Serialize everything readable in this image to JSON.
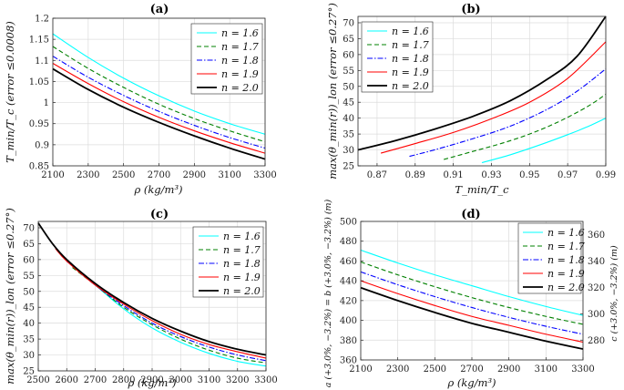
{
  "chart_data": [
    {
      "panel": "(a)",
      "type": "line",
      "xlabel": "ρ (kg/m³)",
      "ylabel": "T_min/T_c (error ≤0.0008)",
      "xlim": [
        2100,
        3300
      ],
      "ylim": [
        0.85,
        1.2
      ],
      "xticks": [
        2100,
        2300,
        2500,
        2700,
        2900,
        3100,
        3300
      ],
      "yticks": [
        0.85,
        0.9,
        0.95,
        1,
        1.05,
        1.1,
        1.15,
        1.2
      ],
      "ytick_labels": [
        "0.85",
        "0.9",
        "0.95",
        "1",
        "1.05",
        "1.1",
        "1.15",
        "1.2"
      ],
      "legend_position": "top-right",
      "series": [
        {
          "name": "n = 1.6",
          "x": [
            2100,
            2300,
            2500,
            2700,
            2900,
            3100,
            3300
          ],
          "y": [
            1.163,
            1.107,
            1.058,
            1.016,
            0.98,
            0.95,
            0.925
          ]
        },
        {
          "name": "n = 1.7",
          "x": [
            2100,
            2300,
            2500,
            2700,
            2900,
            3100,
            3300
          ],
          "y": [
            1.133,
            1.081,
            1.036,
            0.996,
            0.962,
            0.933,
            0.907
          ]
        },
        {
          "name": "n = 1.8",
          "x": [
            2100,
            2300,
            2500,
            2700,
            2900,
            3100,
            3300
          ],
          "y": [
            1.11,
            1.06,
            1.017,
            0.979,
            0.946,
            0.917,
            0.892
          ]
        },
        {
          "name": "n = 1.9",
          "x": [
            2100,
            2300,
            2500,
            2700,
            2900,
            3100,
            3300
          ],
          "y": [
            1.093,
            1.045,
            1.002,
            0.965,
            0.933,
            0.905,
            0.88
          ]
        },
        {
          "name": "n = 2.0",
          "x": [
            2100,
            2300,
            2500,
            2700,
            2900,
            3100,
            3300
          ],
          "y": [
            1.08,
            1.031,
            0.989,
            0.953,
            0.921,
            0.892,
            0.866
          ]
        }
      ]
    },
    {
      "panel": "(b)",
      "type": "line",
      "xlabel": "T_min/T_c",
      "ylabel": "max(θ_min(r))_lon (error ≤0.27°)",
      "xlim": [
        0.86,
        0.99
      ],
      "ylim": [
        25,
        72
      ],
      "xticks": [
        0.87,
        0.89,
        0.91,
        0.93,
        0.95,
        0.97,
        0.99
      ],
      "yticks": [
        25,
        30,
        35,
        40,
        45,
        50,
        55,
        60,
        65,
        70
      ],
      "legend_position": "top-left",
      "series": [
        {
          "name": "n = 1.6",
          "x": [
            0.925,
            0.94,
            0.955,
            0.97,
            0.98,
            0.99
          ],
          "y": [
            26.0,
            28.5,
            31.5,
            34.8,
            37.2,
            40.0
          ]
        },
        {
          "name": "n = 1.7",
          "x": [
            0.905,
            0.92,
            0.935,
            0.95,
            0.965,
            0.98,
            0.99
          ],
          "y": [
            27.0,
            29.5,
            32.0,
            35.0,
            38.8,
            43.5,
            47.5
          ]
        },
        {
          "name": "n = 1.8",
          "x": [
            0.887,
            0.9,
            0.92,
            0.94,
            0.96,
            0.975,
            0.99
          ],
          "y": [
            28.0,
            30.0,
            33.5,
            37.5,
            43.0,
            48.5,
            55.5
          ]
        },
        {
          "name": "n = 1.9",
          "x": [
            0.872,
            0.89,
            0.91,
            0.93,
            0.95,
            0.97,
            0.99
          ],
          "y": [
            29.0,
            32.0,
            35.5,
            39.8,
            45.0,
            52.5,
            64.0
          ]
        },
        {
          "name": "n = 2.0",
          "x": [
            0.86,
            0.88,
            0.9,
            0.92,
            0.94,
            0.96,
            0.975,
            0.99
          ],
          "y": [
            30.0,
            33.0,
            36.5,
            40.5,
            45.5,
            52.5,
            59.5,
            72.0
          ]
        }
      ]
    },
    {
      "panel": "(c)",
      "type": "line",
      "xlabel": "ρ (kg/m³)",
      "ylabel": "max(θ_min(r))_lon (error ≤0.27°)",
      "xlim": [
        2500,
        3300
      ],
      "ylim": [
        25,
        72
      ],
      "xticks": [
        2500,
        2600,
        2700,
        2800,
        2900,
        3000,
        3100,
        3200,
        3300
      ],
      "yticks": [
        25,
        30,
        35,
        40,
        45,
        50,
        55,
        60,
        65,
        70
      ],
      "legend_position": "top-right",
      "series": [
        {
          "name": "n = 1.6",
          "x": [
            2650,
            2700,
            2800,
            2900,
            3000,
            3100,
            3200,
            3300
          ],
          "y": [
            55.5,
            52.0,
            44.5,
            38.5,
            34.0,
            30.5,
            28.0,
            26.5
          ]
        },
        {
          "name": "n = 1.7",
          "x": [
            2620,
            2700,
            2800,
            2900,
            3000,
            3100,
            3200,
            3300
          ],
          "y": [
            57.5,
            52.0,
            45.0,
            39.5,
            35.0,
            31.5,
            29.0,
            27.5
          ]
        },
        {
          "name": "n = 1.8",
          "x": [
            2600,
            2700,
            2800,
            2900,
            3000,
            3100,
            3200,
            3300
          ],
          "y": [
            59.5,
            52.0,
            45.5,
            40.0,
            35.8,
            32.5,
            30.0,
            28.2
          ]
        },
        {
          "name": "n = 1.9",
          "x": [
            2560,
            2600,
            2700,
            2800,
            2900,
            3000,
            3100,
            3200,
            3300
          ],
          "y": [
            63.5,
            59.5,
            52.0,
            46.0,
            40.8,
            36.5,
            33.3,
            31.0,
            29.0
          ]
        },
        {
          "name": "n = 2.0",
          "x": [
            2500,
            2550,
            2600,
            2700,
            2800,
            2900,
            3000,
            3100,
            3200,
            3300
          ],
          "y": [
            71.5,
            65.0,
            60.0,
            52.5,
            46.5,
            41.5,
            37.5,
            34.2,
            31.8,
            30.0
          ]
        }
      ]
    },
    {
      "panel": "(d)",
      "type": "line",
      "xlabel": "ρ (kg/m³)",
      "ylabel": "a (+3.0%, −3.2%) = b (+3.0%, −3.2%) (m)",
      "ylabel_right": "c (+3.0%, −3.2%) (m)",
      "xlim": [
        2100,
        3300
      ],
      "ylim": [
        360,
        500
      ],
      "ylim_right": [
        265,
        370
      ],
      "xticks": [
        2100,
        2300,
        2500,
        2700,
        2900,
        3100,
        3300
      ],
      "yticks": [
        360,
        380,
        400,
        420,
        440,
        460,
        480,
        500
      ],
      "yticks_right": [
        280,
        300,
        320,
        340,
        360
      ],
      "legend_position": "top-right",
      "series": [
        {
          "name": "n = 1.6",
          "x": [
            2100,
            2300,
            2500,
            2700,
            2900,
            3100,
            3300
          ],
          "y": [
            471,
            458,
            446,
            435,
            424,
            414,
            405
          ]
        },
        {
          "name": "n = 1.7",
          "x": [
            2100,
            2300,
            2500,
            2700,
            2900,
            3100,
            3300
          ],
          "y": [
            459,
            446,
            434,
            423,
            413,
            404,
            396
          ]
        },
        {
          "name": "n = 1.8",
          "x": [
            2100,
            2300,
            2500,
            2700,
            2900,
            3100,
            3300
          ],
          "y": [
            449,
            436,
            424,
            413,
            403,
            394,
            386
          ]
        },
        {
          "name": "n = 1.9",
          "x": [
            2100,
            2300,
            2500,
            2700,
            2900,
            3100,
            3300
          ],
          "y": [
            440,
            427,
            415,
            404,
            395,
            386,
            378
          ]
        },
        {
          "name": "n = 2.0",
          "x": [
            2100,
            2300,
            2500,
            2700,
            2900,
            3100,
            3300
          ],
          "y": [
            433,
            420,
            408,
            397,
            388,
            379,
            371
          ]
        }
      ]
    }
  ],
  "series_style": [
    {
      "color": "#00ffff",
      "dash": ""
    },
    {
      "color": "#008000",
      "dash": "5,3"
    },
    {
      "color": "#0000ff",
      "dash": "6,2,1.5,2"
    },
    {
      "color": "#ff0000",
      "dash": ""
    },
    {
      "color": "#000000",
      "dash": ""
    }
  ]
}
